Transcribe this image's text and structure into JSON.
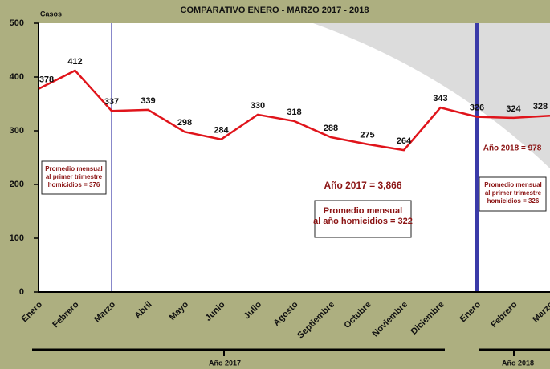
{
  "chart_data": {
    "type": "line",
    "title": "COMPARATIVO ENERO - MARZO 2017 - 2018",
    "ylabel": "Casos",
    "categories": [
      "Enero",
      "Febrero",
      "Marzo",
      "Abril",
      "Mayo",
      "Junio",
      "Julio",
      "Agosto",
      "Septiembre",
      "Octubre",
      "Noviembre",
      "Diciembre",
      "Enero",
      "Febrero",
      "Marzo"
    ],
    "values": [
      378,
      412,
      337,
      339,
      298,
      284,
      330,
      318,
      288,
      275,
      264,
      343,
      326,
      324,
      328
    ],
    "color": "#e0141b",
    "ylim": [
      0,
      500
    ],
    "yticks": [
      0,
      100,
      200,
      300,
      400,
      500
    ],
    "annotations": [
      {
        "lines": [
          "Promedio mensual",
          "al primer trimestre",
          "homicidios = 376"
        ]
      },
      {
        "lines": [
          "Año 2017 = 3,866"
        ]
      },
      {
        "lines": [
          "Promedio mensual",
          "al año homicidios = 322"
        ]
      },
      {
        "lines": [
          "Año 2018 = 978"
        ]
      },
      {
        "lines": [
          "Promedio mensual",
          "al primer trimestre",
          "homicidios = 326"
        ]
      }
    ],
    "group_labels": [
      "Año 2017",
      "Año 2018"
    ]
  }
}
